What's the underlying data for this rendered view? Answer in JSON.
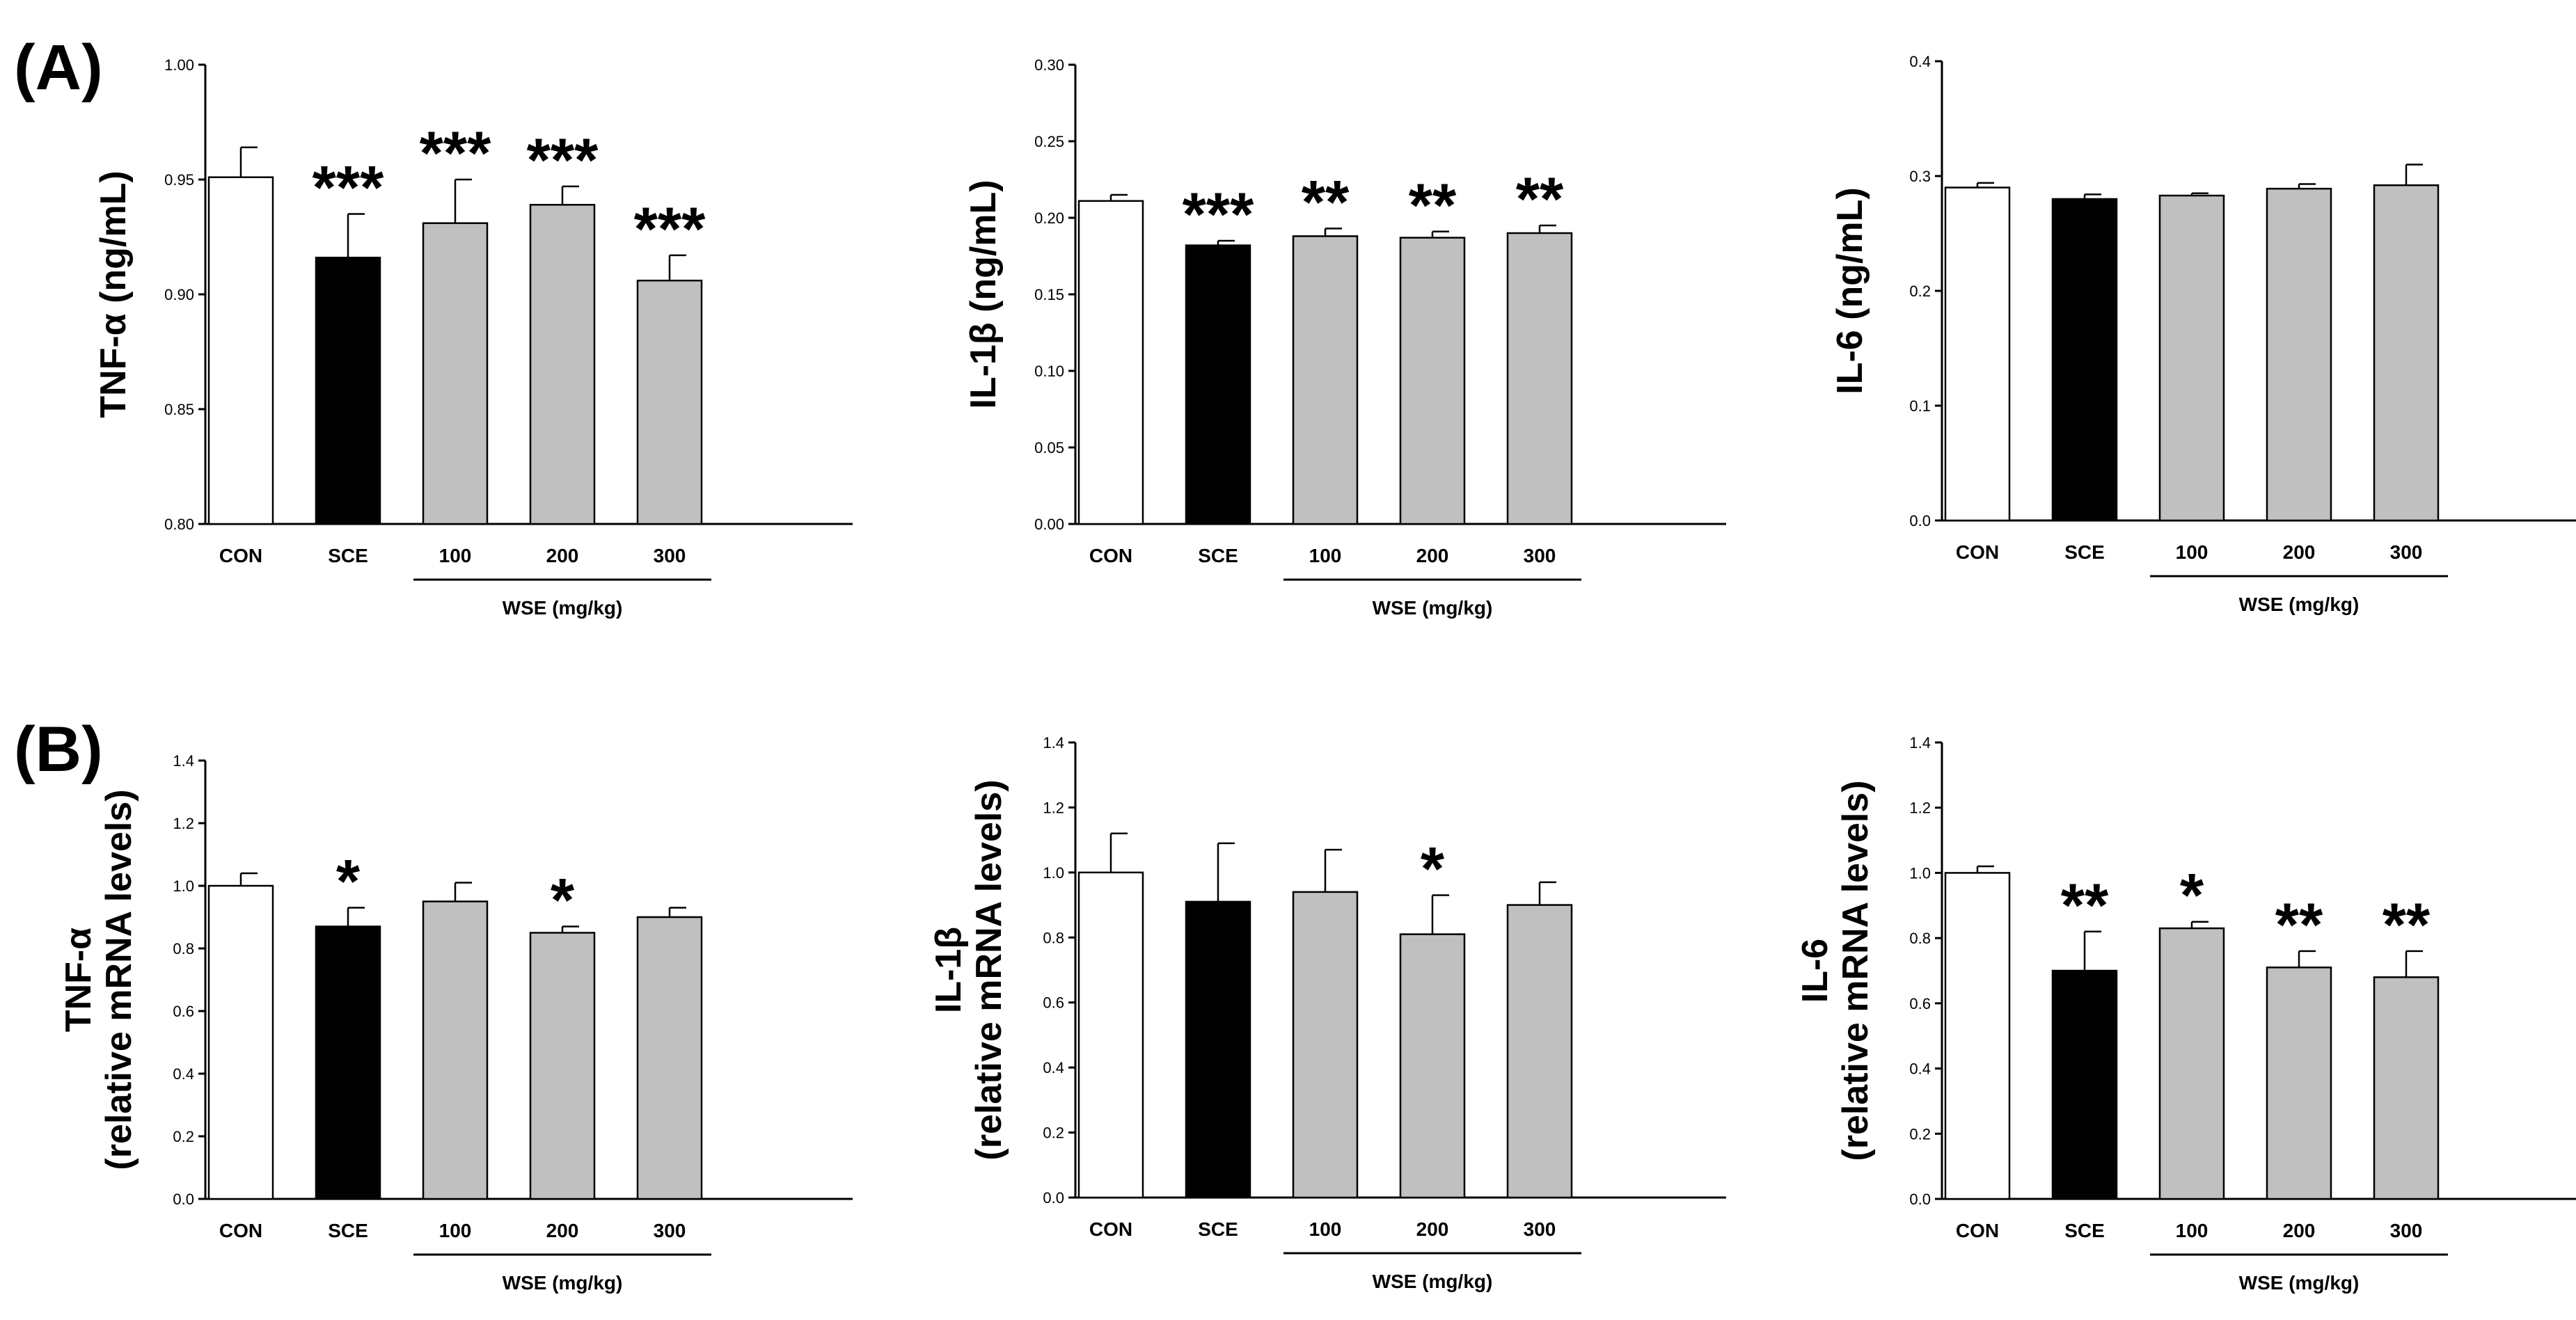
{
  "panel_labels": {
    "a": "(A)",
    "b": "(B)"
  },
  "colors": {
    "CON": "#ffffff",
    "SCE": "#000000",
    "WSE": "#c0c0c0",
    "axis": "#000000"
  },
  "group_label": "WSE (mg/kg)",
  "chart_data": [
    {
      "type": "bar",
      "row": "A",
      "ylabel_lines": [
        "TNF-α (ng/mL)"
      ],
      "categories": [
        "CON",
        "SCE",
        "100",
        "200",
        "300"
      ],
      "values": [
        0.951,
        0.916,
        0.931,
        0.939,
        0.906
      ],
      "errors": [
        0.013,
        0.019,
        0.019,
        0.008,
        0.011
      ],
      "significance": [
        "",
        "***",
        "***",
        "***",
        "***"
      ],
      "ylim": [
        0.8,
        1.0
      ],
      "yticks": [
        "0.80",
        "0.85",
        "0.90",
        "0.95",
        "1.00"
      ],
      "group_label": "WSE (mg/kg)"
    },
    {
      "type": "bar",
      "row": "A",
      "ylabel_lines": [
        "IL-1β (ng/mL)"
      ],
      "categories": [
        "CON",
        "SCE",
        "100",
        "200",
        "300"
      ],
      "values": [
        0.211,
        0.182,
        0.188,
        0.187,
        0.19
      ],
      "errors": [
        0.004,
        0.003,
        0.005,
        0.004,
        0.005
      ],
      "significance": [
        "",
        "***",
        "**",
        "**",
        "**"
      ],
      "ylim": [
        0.0,
        0.3
      ],
      "yticks": [
        "0.00",
        "0.05",
        "0.10",
        "0.15",
        "0.20",
        "0.25",
        "0.30"
      ],
      "group_label": "WSE (mg/kg)"
    },
    {
      "type": "bar",
      "row": "A",
      "ylabel_lines": [
        "IL-6 (ng/mL)"
      ],
      "categories": [
        "CON",
        "SCE",
        "100",
        "200",
        "300"
      ],
      "values": [
        0.29,
        0.28,
        0.283,
        0.289,
        0.292
      ],
      "errors": [
        0.004,
        0.004,
        0.002,
        0.004,
        0.018
      ],
      "significance": [
        "",
        "",
        "",
        "",
        ""
      ],
      "ylim": [
        0.0,
        0.4
      ],
      "yticks": [
        "0.0",
        "0.1",
        "0.2",
        "0.3",
        "0.4"
      ],
      "group_label": "WSE (mg/kg)"
    },
    {
      "type": "bar",
      "row": "B",
      "ylabel_lines": [
        "TNF-α",
        "(relative mRNA levels)"
      ],
      "categories": [
        "CON",
        "SCE",
        "100",
        "200",
        "300"
      ],
      "values": [
        1.0,
        0.87,
        0.95,
        0.85,
        0.9
      ],
      "errors": [
        0.04,
        0.06,
        0.06,
        0.02,
        0.03
      ],
      "significance": [
        "",
        "*",
        "",
        "*",
        ""
      ],
      "ylim": [
        0.0,
        1.4
      ],
      "yticks": [
        "0.0",
        "0.2",
        "0.4",
        "0.6",
        "0.8",
        "1.0",
        "1.2",
        "1.4"
      ],
      "group_label": "WSE (mg/kg)"
    },
    {
      "type": "bar",
      "row": "B",
      "ylabel_lines": [
        "IL-1β",
        "(relative mRNA levels)"
      ],
      "categories": [
        "CON",
        "SCE",
        "100",
        "200",
        "300"
      ],
      "values": [
        1.0,
        0.91,
        0.94,
        0.81,
        0.9
      ],
      "errors": [
        0.12,
        0.18,
        0.13,
        0.12,
        0.07
      ],
      "significance": [
        "",
        "",
        "",
        "*",
        ""
      ],
      "ylim": [
        0.0,
        1.4
      ],
      "yticks": [
        "0.0",
        "0.2",
        "0.4",
        "0.6",
        "0.8",
        "1.0",
        "1.2",
        "1.4"
      ],
      "group_label": "WSE (mg/kg)"
    },
    {
      "type": "bar",
      "row": "B",
      "ylabel_lines": [
        "IL-6",
        "(relative mRNA levels)"
      ],
      "categories": [
        "CON",
        "SCE",
        "100",
        "200",
        "300"
      ],
      "values": [
        1.0,
        0.7,
        0.83,
        0.71,
        0.68
      ],
      "errors": [
        0.02,
        0.12,
        0.02,
        0.05,
        0.08
      ],
      "significance": [
        "",
        "**",
        "*",
        "**",
        "**"
      ],
      "ylim": [
        0.0,
        1.4
      ],
      "yticks": [
        "0.0",
        "0.2",
        "0.4",
        "0.6",
        "0.8",
        "1.0",
        "1.2",
        "1.4"
      ],
      "group_label": "WSE (mg/kg)"
    }
  ]
}
